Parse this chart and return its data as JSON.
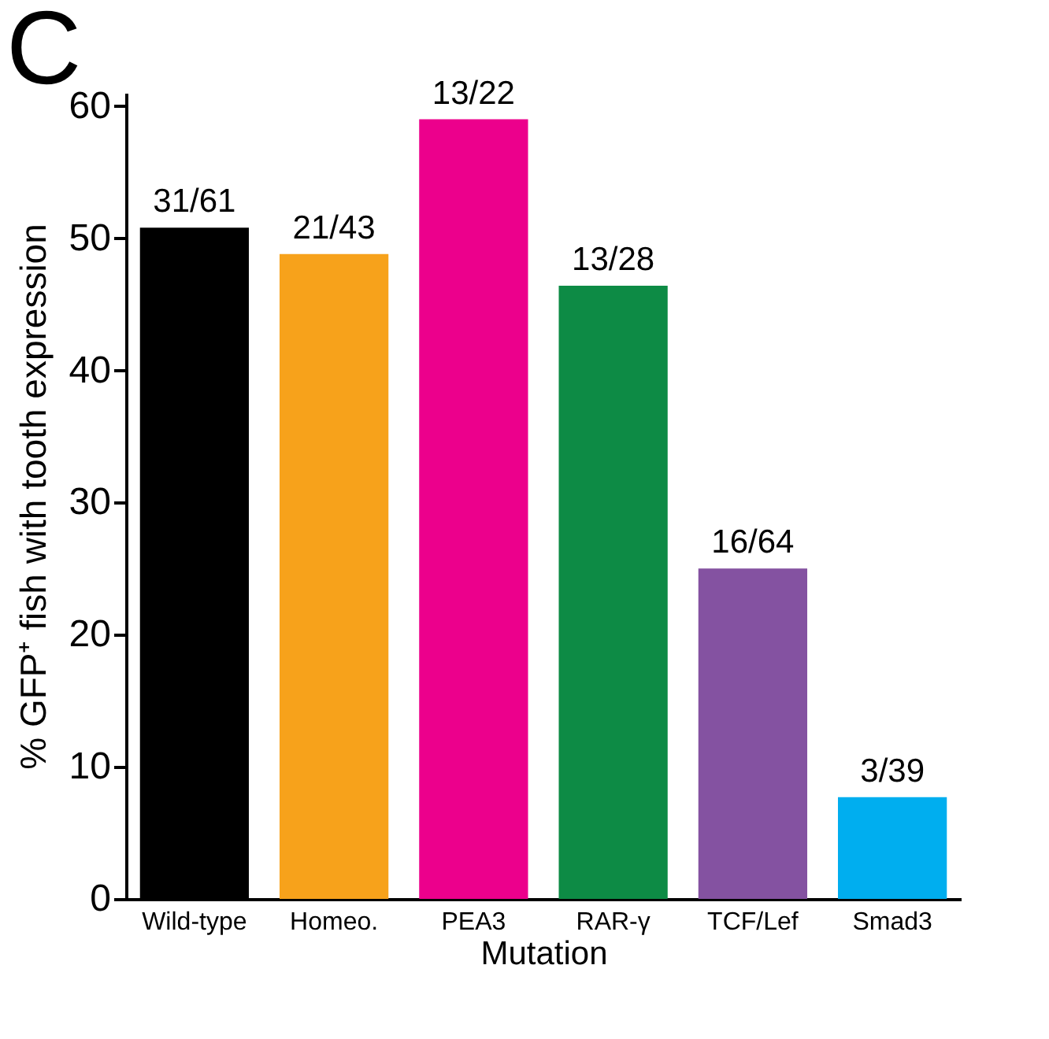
{
  "chart_data": {
    "type": "bar",
    "categories": [
      "Wild-type",
      "Homeo.",
      "PEA3",
      "RAR-γ",
      "TCF/Lef",
      "Smad3"
    ],
    "values": [
      50.8,
      48.8,
      59,
      46.4,
      25,
      7.7
    ],
    "colors": [
      "#000000",
      "#f7a21b",
      "#ec008c",
      "#0d8b45",
      "#8452a1",
      "#00aeef"
    ],
    "value_labels": [
      "31/61",
      "21/43",
      "13/22",
      "13/28",
      "16/64",
      "3/39"
    ],
    "xlabel": "Mutation",
    "ylabel": "% GFP⁺ fish with tooth expression",
    "ylim": [
      0,
      61
    ],
    "yticks": [
      0,
      10,
      20,
      30,
      40,
      50,
      60
    ],
    "grid": false,
    "annotations": [
      "C"
    ]
  }
}
